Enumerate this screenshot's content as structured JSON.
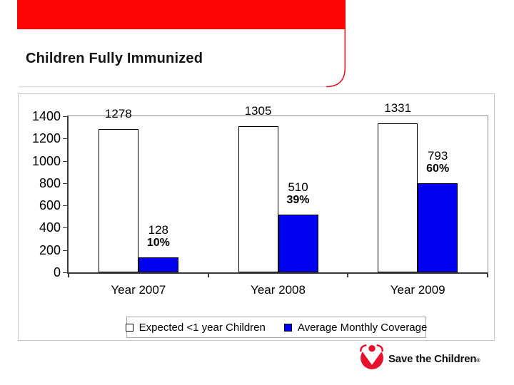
{
  "slide": {
    "title": "Children Fully Immunized",
    "accent_red": "#fb0505",
    "card_border_red": "#d8202c",
    "card_bottom_line": "#e3dada",
    "logo": {
      "text": "Save the Children",
      "reg_mark": "®",
      "brand_red": "#e8112d"
    }
  },
  "chart_data": {
    "type": "bar",
    "title": "",
    "xlabel": "",
    "ylabel": "",
    "categories": [
      "Year 2007",
      "Year 2008",
      "Year 2009"
    ],
    "series": [
      {
        "name": "Expected <1 year Children",
        "color": "#ffffff",
        "values": [
          1278,
          1305,
          1331
        ],
        "labels": [
          "1278",
          "1305",
          "1331"
        ]
      },
      {
        "name": "Average Monthly Coverage",
        "color": "#0000f0",
        "values": [
          128,
          510,
          793
        ],
        "labels": [
          "128",
          "510",
          "793"
        ],
        "sub_labels": [
          "10%",
          "39%",
          "60%"
        ]
      }
    ],
    "ylim": [
      0,
      1400
    ],
    "y_ticks": [
      1400,
      1200,
      1000,
      800,
      600,
      400,
      200,
      0
    ],
    "grid": false,
    "legend_position": "bottom"
  }
}
